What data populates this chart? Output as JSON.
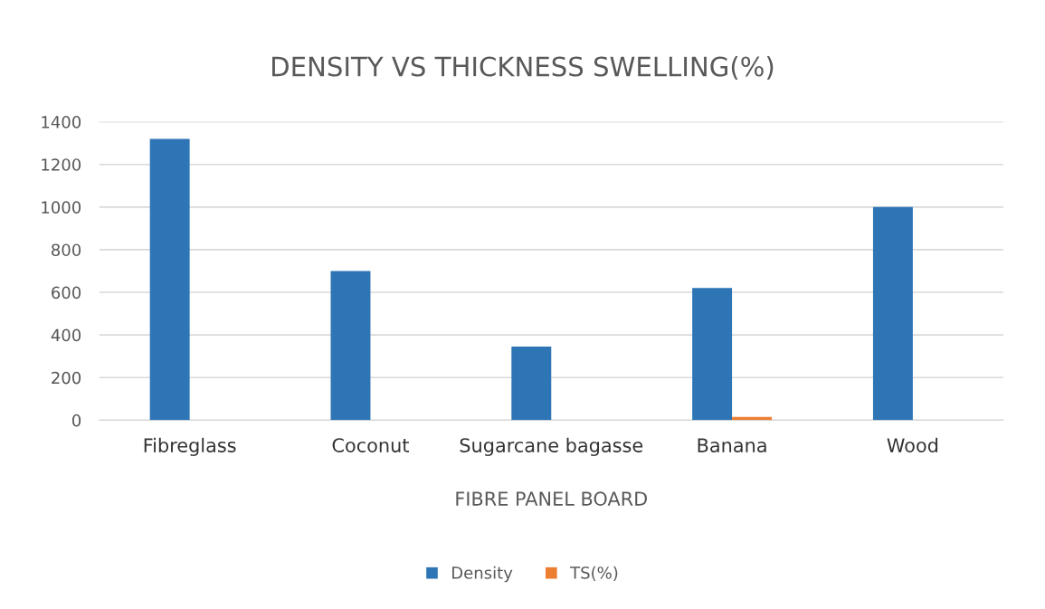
{
  "chart_data": {
    "type": "bar",
    "title": "DENSITY VS THICKNESS SWELLING(%)",
    "xlabel": "FIBRE PANEL BOARD",
    "categories": [
      "Fibreglass",
      "Coconut",
      "Sugarcane bagasse",
      "Banana",
      "Wood"
    ],
    "series": [
      {
        "name": "Density",
        "color": "#2e75b6",
        "values": [
          1320,
          700,
          345,
          620,
          1000
        ]
      },
      {
        "name": "TS(%)",
        "color": "#ed7d31",
        "values": [
          0,
          0,
          0,
          15,
          0
        ]
      }
    ],
    "ylim": [
      0,
      1400
    ],
    "yticks": [
      0,
      200,
      400,
      600,
      800,
      1000,
      1200,
      1400
    ],
    "grid": "y",
    "legend": "bottom"
  }
}
